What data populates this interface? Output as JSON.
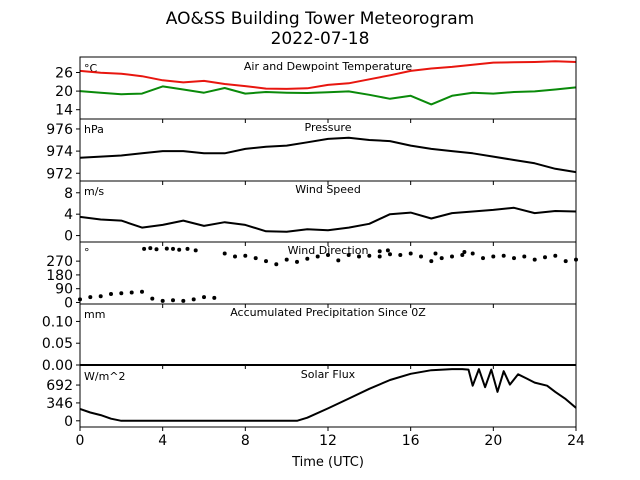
{
  "title_line1": "AO&SS Building Tower Meteorogram",
  "title_line2": "2022-07-18",
  "xlabel": "Time (UTC)",
  "colors": {
    "temperature": "#e8160f",
    "dewpoint": "#0a8a0a",
    "data": "#000000",
    "axes": "#000000"
  },
  "chart_data": [
    {
      "type": "line",
      "title": "Air and Dewpoint Temperature",
      "unit": "°C",
      "xlim": [
        0,
        24
      ],
      "ylim": [
        11,
        31
      ],
      "yticks": [
        14,
        20,
        26
      ],
      "series": [
        {
          "color": "#e8160f",
          "x": [
            0,
            1,
            2,
            3,
            4,
            5,
            6,
            7,
            8,
            9,
            10,
            11,
            12,
            13,
            14,
            15,
            16,
            17,
            18,
            19,
            20,
            21,
            22,
            23,
            24
          ],
          "values": [
            26.5,
            25.9,
            25.6,
            24.8,
            23.5,
            22.8,
            23.3,
            22.3,
            21.6,
            20.8,
            20.7,
            20.9,
            22.0,
            22.5,
            23.8,
            25.1,
            26.5,
            27.3,
            27.8,
            28.5,
            29.2,
            29.3,
            29.4,
            29.6,
            29.4
          ]
        },
        {
          "color": "#0a8a0a",
          "x": [
            0,
            1,
            2,
            3,
            4,
            5,
            6,
            7,
            8,
            9,
            10,
            11,
            12,
            13,
            14,
            15,
            16,
            17,
            18,
            19,
            20,
            21,
            22,
            23,
            24
          ],
          "values": [
            20.0,
            19.5,
            19.0,
            19.2,
            21.5,
            20.5,
            19.5,
            21.0,
            19.2,
            19.7,
            19.5,
            19.4,
            19.6,
            19.9,
            18.8,
            17.5,
            18.5,
            15.7,
            18.5,
            19.5,
            19.2,
            19.7,
            19.9,
            20.5,
            21.2
          ]
        }
      ]
    },
    {
      "type": "line",
      "title": "Pressure",
      "unit": "hPa",
      "xlim": [
        0,
        24
      ],
      "ylim": [
        971.3,
        976.9
      ],
      "yticks": [
        972,
        974,
        976
      ],
      "series": [
        {
          "color": "#000000",
          "x": [
            0,
            1,
            2,
            3,
            4,
            5,
            6,
            7,
            8,
            9,
            10,
            11,
            12,
            13,
            14,
            15,
            16,
            17,
            18,
            19,
            20,
            21,
            22,
            23,
            24
          ],
          "values": [
            973.4,
            973.5,
            973.6,
            973.8,
            974.0,
            974.0,
            973.8,
            973.8,
            974.2,
            974.4,
            974.5,
            974.8,
            975.1,
            975.2,
            975.0,
            974.9,
            974.5,
            974.2,
            974.0,
            973.8,
            973.5,
            973.2,
            972.9,
            972.4,
            972.1
          ]
        }
      ]
    },
    {
      "type": "line",
      "title": "Wind Speed",
      "unit": "m/s",
      "xlim": [
        0,
        24
      ],
      "ylim": [
        -1.2,
        10.2
      ],
      "yticks": [
        0,
        4,
        8
      ],
      "series": [
        {
          "color": "#000000",
          "x": [
            0,
            1,
            2,
            3,
            4,
            5,
            6,
            7,
            8,
            9,
            10,
            11,
            12,
            13,
            14,
            15,
            16,
            17,
            18,
            19,
            20,
            21,
            22,
            23,
            24
          ],
          "values": [
            3.5,
            3.0,
            2.8,
            1.5,
            2.0,
            2.8,
            1.8,
            2.5,
            2.0,
            0.8,
            0.7,
            1.2,
            1.0,
            1.5,
            2.2,
            4.0,
            4.3,
            3.2,
            4.2,
            4.5,
            4.8,
            5.2,
            4.2,
            4.6,
            4.5
          ]
        }
      ]
    },
    {
      "type": "scatter",
      "title": "Wind Direction",
      "unit": "°",
      "xlim": [
        0,
        24
      ],
      "ylim": [
        -10,
        395
      ],
      "yticks": [
        0,
        90,
        180,
        270
      ],
      "series": [
        {
          "color": "#000000",
          "x": [
            0,
            0.5,
            1,
            1.5,
            2,
            2.5,
            3,
            3.5,
            4,
            4.5,
            5,
            5.5,
            6,
            6.5,
            7,
            7.5,
            8,
            8.5,
            9,
            9.5,
            10,
            10.5,
            11,
            11.5,
            12,
            12.5,
            13,
            13.5,
            14,
            14.5,
            15,
            15.5,
            16,
            16.5,
            17,
            17.5,
            18,
            18.5,
            19,
            19.5,
            20,
            20.5,
            21,
            21.5,
            22,
            22.5,
            23,
            23.5,
            24
          ],
          "values": [
            20,
            35,
            40,
            55,
            60,
            65,
            70,
            25,
            10,
            15,
            10,
            20,
            35,
            30,
            320,
            300,
            305,
            290,
            270,
            250,
            280,
            265,
            285,
            300,
            310,
            275,
            310,
            300,
            305,
            300,
            315,
            310,
            320,
            300,
            270,
            290,
            300,
            310,
            320,
            290,
            300,
            305,
            290,
            300,
            280,
            295,
            305,
            270,
            280
          ]
        },
        {
          "color": "#000000",
          "x": [
            3.1,
            3.4,
            3.7,
            4.2,
            4.5,
            4.8,
            5.2,
            5.6,
            14.5,
            14.9,
            17.2,
            18.6
          ],
          "values": [
            350,
            355,
            348,
            352,
            350,
            345,
            350,
            340,
            335,
            340,
            320,
            330
          ]
        }
      ]
    },
    {
      "type": "line",
      "title": "Accumulated Precipitation Since 0Z",
      "unit": "mm",
      "xlim": [
        0,
        24
      ],
      "ylim": [
        0,
        0.14
      ],
      "yticks": [
        0.0,
        0.05,
        0.1
      ],
      "yticklabels": [
        "0.00",
        "0.05",
        "0.10"
      ],
      "series": [
        {
          "color": "#000000",
          "x": [
            0,
            24
          ],
          "values": [
            0,
            0
          ]
        }
      ]
    },
    {
      "type": "line",
      "title": "Solar Flux",
      "unit": "W/m^2",
      "xlim": [
        0,
        24
      ],
      "ylim": [
        -120,
        1080
      ],
      "yticks": [
        0,
        346,
        692
      ],
      "series": [
        {
          "color": "#000000",
          "x": [
            0,
            0.5,
            1,
            1.5,
            2,
            3,
            4,
            6,
            8,
            10,
            10.5,
            11,
            12,
            13,
            14,
            15,
            16,
            17,
            18,
            18.5,
            18.8,
            19,
            19.3,
            19.6,
            19.9,
            20.2,
            20.5,
            20.8,
            21.2,
            21.6,
            22,
            22.6,
            23,
            23.5,
            24
          ],
          "values": [
            230,
            160,
            110,
            40,
            0,
            0,
            0,
            0,
            0,
            0,
            0,
            60,
            240,
            430,
            620,
            790,
            910,
            980,
            1000,
            1000,
            990,
            680,
            1000,
            650,
            990,
            560,
            960,
            700,
            900,
            820,
            740,
            680,
            560,
            420,
            250
          ]
        }
      ]
    }
  ],
  "xticks": [
    0,
    4,
    8,
    12,
    16,
    20,
    24
  ]
}
